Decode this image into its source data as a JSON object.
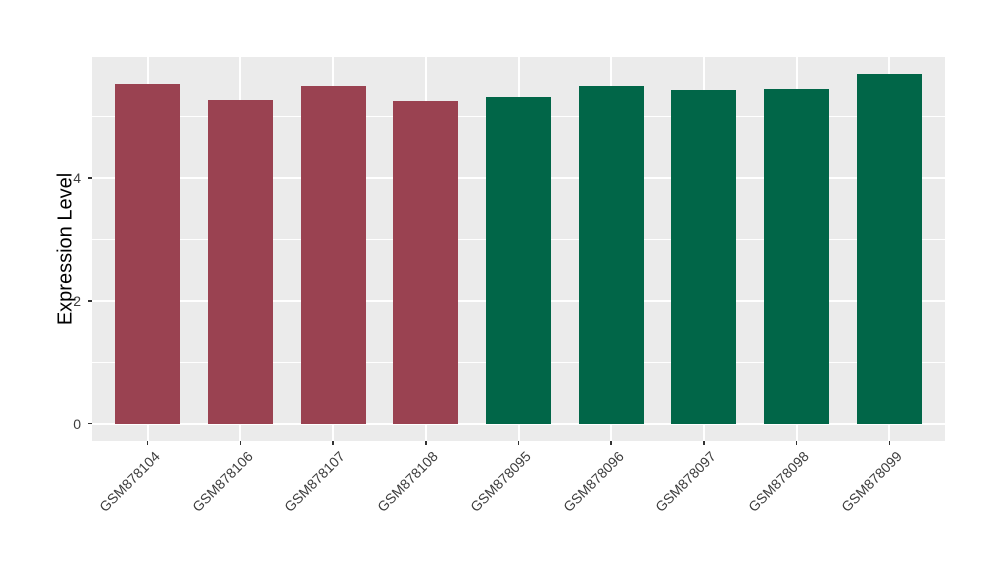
{
  "chart_data": {
    "type": "bar",
    "title": "",
    "xlabel": "",
    "ylabel": "Expression Level",
    "categories": [
      "GSM878104",
      "GSM878106",
      "GSM878107",
      "GSM878108",
      "GSM878095",
      "GSM878096",
      "GSM878097",
      "GSM878098",
      "GSM878099"
    ],
    "values": [
      5.54,
      5.27,
      5.5,
      5.26,
      5.33,
      5.51,
      5.43,
      5.45,
      5.69
    ],
    "bar_colors": [
      "#9A4251",
      "#9A4251",
      "#9A4251",
      "#9A4251",
      "#016648",
      "#016648",
      "#016648",
      "#016648",
      "#016648"
    ],
    "groups": [
      {
        "name": "maroon-group",
        "color": "#9A4251",
        "samples": [
          "GSM878104",
          "GSM878106",
          "GSM878107",
          "GSM878108"
        ]
      },
      {
        "name": "green-group",
        "color": "#016648",
        "samples": [
          "GSM878095",
          "GSM878096",
          "GSM878097",
          "GSM878098",
          "GSM878099"
        ]
      }
    ],
    "y_ticks": [
      "0",
      "2",
      "4"
    ],
    "y_tick_values": [
      0,
      2,
      4
    ],
    "y_minor_tick_values": [
      1,
      3,
      5
    ],
    "ylim": [
      -0.285,
      5.975
    ],
    "x_tick_angle": 45,
    "grid": true,
    "legend": "none",
    "colors": {
      "figure_background": "#FFFFFF",
      "panel_background": "#EBEBEB",
      "gridline": "#FFFFFF",
      "tick_mark": "#333333",
      "axis_text": "#3D3D3D",
      "axis_title": "#000000"
    }
  }
}
